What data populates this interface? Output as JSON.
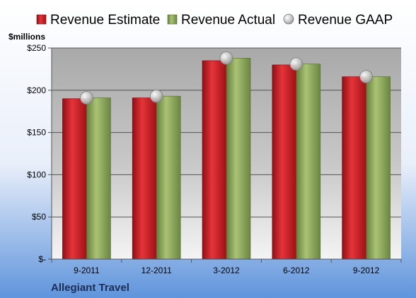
{
  "chart_data": {
    "type": "bar",
    "title": "",
    "company_label": "Allegiant Travel",
    "ylabel": "$millions",
    "xlabel": "",
    "categories": [
      "9-2011",
      "12-2011",
      "3-2012",
      "6-2012",
      "9-2012"
    ],
    "series": [
      {
        "name": "Revenue Estimate",
        "kind": "bar",
        "color": "#cc1f25",
        "values": [
          190,
          191,
          235,
          230,
          216
        ]
      },
      {
        "name": "Revenue Actual",
        "kind": "bar",
        "color": "#8ea85a",
        "values": [
          191,
          193,
          238,
          231,
          216
        ]
      },
      {
        "name": "Revenue GAAP",
        "kind": "marker",
        "color": "#b8b8b8",
        "values": [
          191,
          193,
          238,
          231,
          216
        ]
      }
    ],
    "ylim": [
      0,
      250
    ],
    "yticks": [
      0,
      50,
      100,
      150,
      200,
      250
    ],
    "ytick_labels": [
      "$-",
      "$50",
      "$100",
      "$150",
      "$200",
      "$250"
    ],
    "grid": true,
    "legend_position": "top"
  }
}
